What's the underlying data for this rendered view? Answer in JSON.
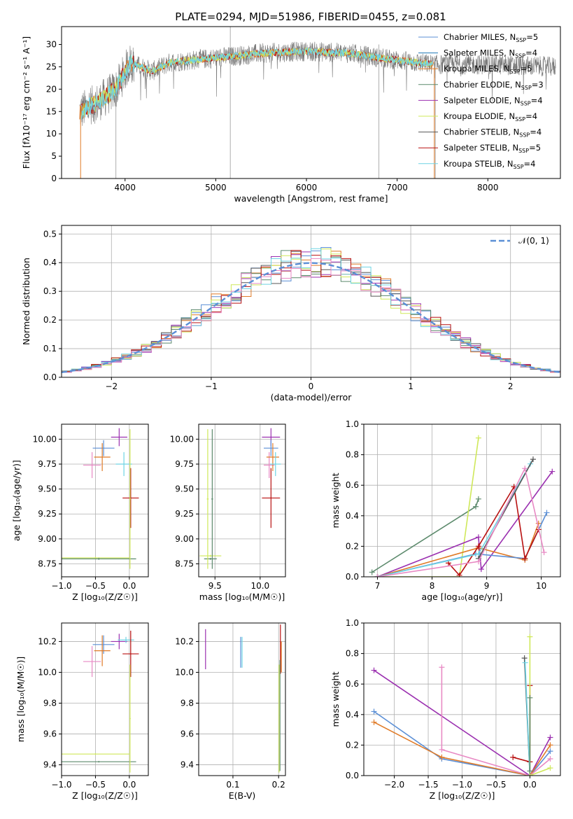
{
  "figure": {
    "title": "PLATE=0294, MJD=51986, FIBERID=0455, z=0.081"
  },
  "colors": {
    "chabrier_miles": "#5b8fd6",
    "salpeter_miles": "#1f77b4",
    "kroupa_miles": "#e07b28",
    "chabrier_elodie": "#5c8a6c",
    "salpeter_elodie": "#9b30b0",
    "kroupa_elodie": "#cfe85a",
    "chabrier_stelib": "#555555",
    "salpeter_stelib": "#b81010",
    "kroupa_stelib": "#6fd4e4",
    "pink": "#e889c4",
    "normal_curve": "#5b8fd6"
  },
  "chart_data": [
    {
      "id": "spectrum",
      "type": "line",
      "title": "PLATE=0294, MJD=51986, FIBERID=0455, z=0.081",
      "xlabel": "wavelength [Angstrom, rest frame]",
      "ylabel": "Flux [f",
      "ylabel_full": "Flux [fλ10⁻¹⁷ erg cm⁻² s⁻¹ A⁻¹]",
      "xlim": [
        3300,
        8800
      ],
      "ylim": [
        0,
        34
      ],
      "xticks": [
        4000,
        5000,
        6000,
        7000,
        8000
      ],
      "yticks": [
        0,
        5,
        10,
        15,
        20,
        25,
        30
      ],
      "legend_position": "top-right",
      "legend": [
        "Chabrier MILES, N_SSP=5",
        "Salpeter MILES, N_SSP=4",
        "Kroupa MILES, N_SSP=5",
        "Chabrier ELODIE, N_SSP=3",
        "Salpeter ELODIE, N_SSP=4",
        "Kroupa ELODIE, N_SSP=4",
        "Chabrier STELIB, N_SSP=4",
        "Salpeter STELIB, N_SSP=5",
        "Kroupa STELIB, N_SSP=4"
      ],
      "data_range": [
        3500,
        8750
      ],
      "continuum_points": [
        [
          3500,
          15
        ],
        [
          3700,
          17
        ],
        [
          3900,
          20
        ],
        [
          4050,
          26
        ],
        [
          4300,
          24
        ],
        [
          4500,
          26
        ],
        [
          5000,
          27
        ],
        [
          5500,
          28
        ],
        [
          6000,
          28.5
        ],
        [
          6500,
          28
        ],
        [
          6800,
          27
        ],
        [
          7000,
          26.5
        ],
        [
          7400,
          25.5
        ],
        [
          8000,
          25.5
        ],
        [
          8750,
          25
        ]
      ]
    },
    {
      "id": "residuals",
      "type": "histogram",
      "xlabel": "(data-model)/error",
      "ylabel": "Normed distribution",
      "xlim": [
        -2.5,
        2.5
      ],
      "ylim": [
        0,
        0.53
      ],
      "xticks": [
        -2,
        -1,
        0,
        1,
        2
      ],
      "yticks": [
        0.0,
        0.1,
        0.2,
        0.3,
        0.4,
        0.5
      ],
      "grid": true,
      "legend": [
        "𝒩(0, 1)"
      ],
      "legend_position": "top-right",
      "bin_width": 0.1
    },
    {
      "id": "age-vs-Z",
      "type": "scatter",
      "xlabel": "Z [log₁₀(Z/Z☉)]",
      "ylabel": "age  [log₁₀(age/yr)]",
      "xlim": [
        -1.0,
        0.28
      ],
      "ylim": [
        8.62,
        10.15
      ],
      "xticks": [
        -1.0,
        -0.5,
        0.0
      ],
      "yticks": [
        8.75,
        9.0,
        9.25,
        9.5,
        9.75,
        10.0
      ],
      "grid": true,
      "points": [
        {
          "c": "kroupa_elodie",
          "x": -0.5,
          "y": 8.81,
          "xerr": 0.5,
          "yerr": 0.01
        },
        {
          "c": "chabrier_elodie",
          "x": -0.45,
          "y": 8.8,
          "xerr": 0.55,
          "yerr": 0.01
        },
        {
          "c": "chabrier_miles",
          "x": -0.38,
          "y": 9.91,
          "xerr": 0.16,
          "yerr": 0.08
        },
        {
          "c": "pink",
          "x": -0.55,
          "y": 9.74,
          "xerr": 0.13,
          "yerr": 0.13
        },
        {
          "c": "kroupa_miles",
          "x": -0.4,
          "y": 9.82,
          "xerr": 0.12,
          "yerr": 0.14
        },
        {
          "c": "salpeter_elodie",
          "x": -0.15,
          "y": 10.02,
          "xerr": 0.12,
          "yerr": 0.09
        },
        {
          "c": "kroupa_stelib",
          "x": -0.08,
          "y": 9.75,
          "xerr": 0.12,
          "yerr": 0.12
        },
        {
          "c": "salpeter_stelib",
          "x": 0.02,
          "y": 9.41,
          "xerr": 0.12,
          "yerr": 0.3
        },
        {
          "c": "kroupa_elodie",
          "x": 0.01,
          "y": 9.4,
          "xerr": 0.01,
          "yerr": 0.7
        }
      ]
    },
    {
      "id": "age-vs-mass",
      "type": "scatter",
      "xlabel": "mass [log₁₀(M/M☉)]",
      "ylabel": "",
      "xlim": [
        9.32,
        10.28
      ],
      "ylim": [
        8.62,
        10.15
      ],
      "xticks": [
        9.5,
        10.0
      ],
      "yticks": [
        8.75,
        9.0,
        9.25,
        9.5,
        9.75,
        10.0
      ],
      "grid": true,
      "points": [
        {
          "c": "kroupa_elodie",
          "x": 9.45,
          "y": 8.83,
          "xerr": 0.12,
          "yerr": 0.01
        },
        {
          "c": "chabrier_elodie",
          "x": 9.45,
          "y": 8.8,
          "xerr": 0.07,
          "yerr": 0.01
        },
        {
          "c": "kroupa_elodie",
          "x": 9.42,
          "y": 9.4,
          "xerr": 0.01,
          "yerr": 0.7
        },
        {
          "c": "chabrier_elodie",
          "x": 9.47,
          "y": 9.4,
          "xerr": 0.01,
          "yerr": 0.7
        },
        {
          "c": "salpeter_elodie",
          "x": 10.12,
          "y": 10.02,
          "xerr": 0.1,
          "yerr": 0.09
        },
        {
          "c": "chabrier_miles",
          "x": 10.12,
          "y": 9.91,
          "xerr": 0.08,
          "yerr": 0.08
        },
        {
          "c": "pink",
          "x": 10.1,
          "y": 9.74,
          "xerr": 0.06,
          "yerr": 0.13
        },
        {
          "c": "kroupa_miles",
          "x": 10.14,
          "y": 9.82,
          "xerr": 0.07,
          "yerr": 0.14
        },
        {
          "c": "kroupa_stelib",
          "x": 10.17,
          "y": 9.75,
          "xerr": 0.06,
          "yerr": 0.12
        },
        {
          "c": "salpeter_stelib",
          "x": 10.12,
          "y": 9.41,
          "xerr": 0.1,
          "yerr": 0.3
        }
      ]
    },
    {
      "id": "weight-vs-age",
      "type": "line",
      "xlabel": "age  [log₁₀(age/yr)]",
      "ylabel": "mass weight",
      "xlim": [
        6.75,
        10.35
      ],
      "ylim": [
        0,
        1.0
      ],
      "xticks": [
        7,
        8,
        9,
        10
      ],
      "yticks": [
        0.0,
        0.2,
        0.4,
        0.6,
        0.8,
        1.0
      ],
      "grid": true,
      "series": [
        {
          "c": "chabrier_elodie",
          "pts": [
            [
              6.9,
              0.03
            ],
            [
              8.8,
              0.46
            ],
            [
              8.85,
              0.51
            ]
          ]
        },
        {
          "c": "kroupa_elodie",
          "pts": [
            [
              7.0,
              0.0
            ],
            [
              8.5,
              0.0
            ],
            [
              8.85,
              0.91
            ]
          ]
        },
        {
          "c": "salpeter_elodie",
          "pts": [
            [
              7.0,
              0.0
            ],
            [
              8.85,
              0.26
            ],
            [
              8.9,
              0.05
            ],
            [
              10.2,
              0.69
            ]
          ]
        },
        {
          "c": "kroupa_miles",
          "pts": [
            [
              7.0,
              0.0
            ],
            [
              8.85,
              0.19
            ],
            [
              9.7,
              0.11
            ],
            [
              9.95,
              0.35
            ]
          ]
        },
        {
          "c": "chabrier_miles",
          "pts": [
            [
              7.0,
              0.0
            ],
            [
              8.8,
              0.15
            ],
            [
              9.7,
              0.12
            ],
            [
              10.1,
              0.42
            ]
          ]
        },
        {
          "c": "salpeter_stelib",
          "pts": [
            [
              8.3,
              0.09
            ],
            [
              8.5,
              0.01
            ],
            [
              8.85,
              0.2
            ],
            [
              9.5,
              0.59
            ],
            [
              9.7,
              0.12
            ],
            [
              9.95,
              0.31
            ]
          ]
        },
        {
          "c": "kroupa_stelib",
          "pts": [
            [
              7.0,
              0.0
            ],
            [
              8.85,
              0.15
            ],
            [
              9.8,
              0.74
            ]
          ]
        },
        {
          "c": "chabrier_stelib",
          "pts": [
            [
              8.85,
              0.12
            ],
            [
              9.85,
              0.77
            ]
          ]
        },
        {
          "c": "pink",
          "pts": [
            [
              7.0,
              0.0
            ],
            [
              8.85,
              0.1
            ],
            [
              9.7,
              0.71
            ],
            [
              10.05,
              0.16
            ]
          ]
        }
      ]
    },
    {
      "id": "mass-vs-Z",
      "type": "scatter",
      "xlabel": "Z [log₁₀(Z/Z☉)]",
      "ylabel": "mass [log₁₀(M/M☉)]",
      "xlim": [
        -1.0,
        0.28
      ],
      "ylim": [
        9.33,
        10.32
      ],
      "xticks": [
        -1.0,
        -0.5,
        0.0
      ],
      "yticks": [
        9.4,
        9.6,
        9.8,
        10.0,
        10.2
      ],
      "grid": true,
      "points": [
        {
          "c": "kroupa_elodie",
          "x": -0.5,
          "y": 9.47,
          "xerr": 0.5,
          "yerr": 0.005
        },
        {
          "c": "chabrier_elodie",
          "x": -0.45,
          "y": 9.42,
          "xerr": 0.55,
          "yerr": 0.005
        },
        {
          "c": "pink",
          "x": -0.55,
          "y": 10.07,
          "xerr": 0.13,
          "yerr": 0.1
        },
        {
          "c": "chabrier_miles",
          "x": -0.38,
          "y": 10.18,
          "xerr": 0.16,
          "yerr": 0.06
        },
        {
          "c": "kroupa_miles",
          "x": -0.4,
          "y": 10.14,
          "xerr": 0.12,
          "yerr": 0.1
        },
        {
          "c": "salpeter_elodie",
          "x": -0.15,
          "y": 10.2,
          "xerr": 0.12,
          "yerr": 0.05
        },
        {
          "c": "kroupa_stelib",
          "x": -0.05,
          "y": 10.21,
          "xerr": 0.12,
          "yerr": 0.02
        },
        {
          "c": "salpeter_stelib",
          "x": 0.02,
          "y": 10.12,
          "xerr": 0.12,
          "yerr": 0.15
        },
        {
          "c": "kroupa_elodie",
          "x": 0.01,
          "y": 9.7,
          "xerr": 0.01,
          "yerr": 0.35
        }
      ]
    },
    {
      "id": "mass-vs-EBV",
      "type": "scatter",
      "xlabel": "E(B-V)",
      "ylabel": "",
      "xlim": [
        0.025,
        0.215
      ],
      "ylim": [
        9.33,
        10.32
      ],
      "xticks": [
        0.1,
        0.2
      ],
      "yticks": [
        9.4,
        9.6,
        9.8,
        10.0,
        10.2
      ],
      "grid": true,
      "points": [
        {
          "c": "salpeter_elodie",
          "x": 0.04,
          "y": 10.15,
          "xerr": 0.0005,
          "yerr": 0.13
        },
        {
          "c": "chabrier_miles",
          "x": 0.117,
          "y": 10.13,
          "xerr": 0.0005,
          "yerr": 0.1
        },
        {
          "c": "kroupa_stelib",
          "x": 0.12,
          "y": 10.13,
          "xerr": 0.0005,
          "yerr": 0.1
        },
        {
          "c": "salpeter_stelib",
          "x": 0.204,
          "y": 10.15,
          "xerr": 0.0005,
          "yerr": 0.16
        },
        {
          "c": "kroupa_miles",
          "x": 0.206,
          "y": 10.1,
          "xerr": 0.0005,
          "yerr": 0.1
        },
        {
          "c": "kroupa_elodie",
          "x": 0.201,
          "y": 9.7,
          "xerr": 0.0005,
          "yerr": 0.35
        },
        {
          "c": "chabrier_elodie",
          "x": 0.203,
          "y": 9.72,
          "xerr": 0.0005,
          "yerr": 0.36
        }
      ]
    },
    {
      "id": "weight-vs-Z",
      "type": "line",
      "xlabel": "Z [log₁₀(Z/Z☉)]",
      "ylabel": "mass weight",
      "xlim": [
        -2.45,
        0.45
      ],
      "ylim": [
        0,
        1.0
      ],
      "xticks": [
        -2.0,
        -1.5,
        -1.0,
        -0.5,
        0.0
      ],
      "yticks": [
        0.0,
        0.2,
        0.4,
        0.6,
        0.8,
        1.0
      ],
      "grid": true,
      "series": [
        {
          "c": "salpeter_elodie",
          "pts": [
            [
              -2.3,
              0.69
            ],
            [
              0.0,
              0.0
            ],
            [
              0.3,
              0.25
            ]
          ]
        },
        {
          "c": "chabrier_miles",
          "pts": [
            [
              -2.3,
              0.42
            ],
            [
              -1.3,
              0.11
            ],
            [
              0.0,
              0.0
            ],
            [
              0.3,
              0.16
            ]
          ]
        },
        {
          "c": "kroupa_miles",
          "pts": [
            [
              -2.3,
              0.35
            ],
            [
              -1.3,
              0.12
            ],
            [
              0.0,
              0.0
            ],
            [
              0.3,
              0.2
            ]
          ]
        },
        {
          "c": "pink",
          "pts": [
            [
              -1.3,
              0.71
            ],
            [
              -1.3,
              0.17
            ],
            [
              0.0,
              0.0
            ],
            [
              0.3,
              0.11
            ]
          ]
        },
        {
          "c": "salpeter_stelib",
          "pts": [
            [
              -0.25,
              0.12
            ],
            [
              0.0,
              0.09
            ],
            [
              0.0,
              0.59
            ]
          ]
        },
        {
          "c": "chabrier_stelib",
          "pts": [
            [
              -0.08,
              0.77
            ],
            [
              0.0,
              0.0
            ]
          ]
        },
        {
          "c": "kroupa_stelib",
          "pts": [
            [
              -0.07,
              0.74
            ],
            [
              0.0,
              0.0
            ]
          ]
        },
        {
          "c": "kroupa_elodie",
          "pts": [
            [
              0.0,
              0.91
            ],
            [
              0.0,
              0.0
            ],
            [
              0.3,
              0.05
            ]
          ]
        },
        {
          "c": "chabrier_elodie",
          "pts": [
            [
              0.0,
              0.51
            ],
            [
              0.0,
              0.03
            ]
          ]
        }
      ]
    }
  ]
}
